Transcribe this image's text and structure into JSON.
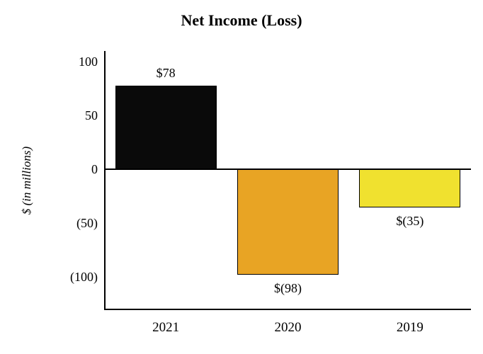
{
  "chart_data": {
    "type": "bar",
    "title": "Net Income (Loss)",
    "ylabel": "$ (in millions)",
    "xlabel": "",
    "categories": [
      "2021",
      "2020",
      "2019"
    ],
    "values": [
      78,
      -98,
      -35
    ],
    "value_labels": [
      "$78",
      "$(98)",
      "$(35)"
    ],
    "bar_colors": [
      "#0a0a0a",
      "#E8A424",
      "#F0E12F"
    ],
    "bar_border_color": "#000000",
    "yticks": [
      {
        "value": 100,
        "label": "100"
      },
      {
        "value": 50,
        "label": "50"
      },
      {
        "value": 0,
        "label": "0"
      },
      {
        "value": -50,
        "label": "(50)"
      },
      {
        "value": -100,
        "label": "(100)"
      }
    ],
    "ylim": [
      -130,
      110
    ],
    "grid": false,
    "legend": false
  }
}
